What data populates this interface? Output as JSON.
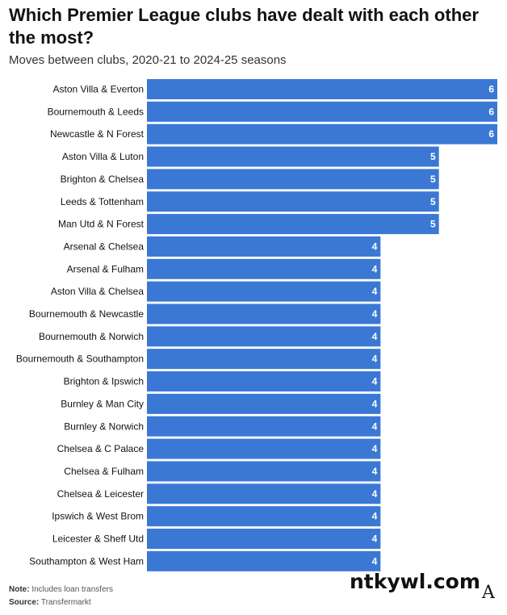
{
  "title": "Which Premier League clubs have dealt with each other the most?",
  "subtitle": "Moves between clubs, 2020-21 to 2024-25 seasons",
  "note_label": "Note:",
  "note_text": "Includes loan transfers",
  "source_label": "Source:",
  "source_text": "Transfermarkt",
  "watermark": "ntkywl.com",
  "logo_letter": "A",
  "colors": {
    "bar": "#3a78d4"
  },
  "chart_data": {
    "type": "bar",
    "orientation": "horizontal",
    "categories": [
      "Aston Villa & Everton",
      "Bournemouth & Leeds",
      "Newcastle & N Forest",
      "Aston Villa & Luton",
      "Brighton & Chelsea",
      "Leeds & Tottenham",
      "Man Utd & N Forest",
      "Arsenal & Chelsea",
      "Arsenal & Fulham",
      "Aston Villa & Chelsea",
      "Bournemouth & Newcastle",
      "Bournemouth & Norwich",
      "Bournemouth & Southampton",
      "Brighton & Ipswich",
      "Burnley & Man City",
      "Burnley & Norwich",
      "Chelsea & C Palace",
      "Chelsea & Fulham",
      "Chelsea & Leicester",
      "Ipswich & West Brom",
      "Leicester & Sheff Utd",
      "Southampton & West Ham"
    ],
    "values": [
      6,
      6,
      6,
      5,
      5,
      5,
      5,
      4,
      4,
      4,
      4,
      4,
      4,
      4,
      4,
      4,
      4,
      4,
      4,
      4,
      4,
      4
    ],
    "xlim": [
      0,
      6
    ],
    "data_labels": true,
    "grid": false,
    "legend": "none"
  }
}
